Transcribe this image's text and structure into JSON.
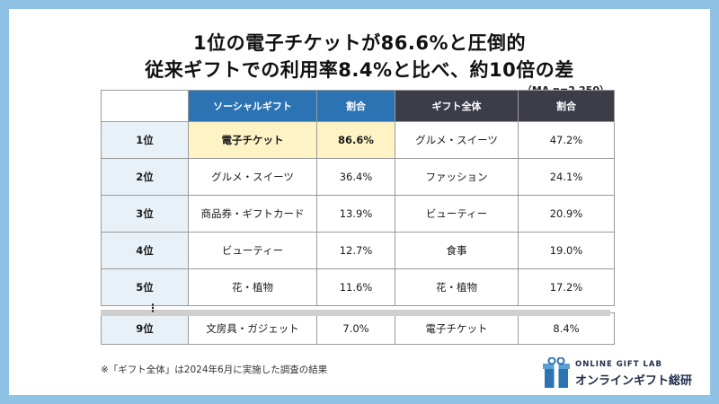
{
  "headline": {
    "line1": "1位の電子チケットが86.6%と圧倒的",
    "line2": "従来ギフトでの利用率8.4%と比べ、約10倍の差"
  },
  "sample_note": "（MA n=2,250）",
  "table": {
    "headers": [
      "",
      "ソーシャルギフト",
      "割合",
      "ギフト全体",
      "割合"
    ],
    "rows": [
      {
        "rank": "1位",
        "social": "電子チケット",
        "social_pct": "86.6%",
        "gift": "グルメ・スイーツ",
        "gift_pct": "47.2%"
      },
      {
        "rank": "2位",
        "social": "グルメ・スイーツ",
        "social_pct": "36.4%",
        "gift": "ファッション",
        "gift_pct": "24.1%"
      },
      {
        "rank": "3位",
        "social": "商品券・ギフトカード",
        "social_pct": "13.9%",
        "gift": "ビューティー",
        "gift_pct": "20.9%"
      },
      {
        "rank": "4位",
        "social": "ビューティー",
        "social_pct": "12.7%",
        "gift": "食事",
        "gift_pct": "19.0%"
      },
      {
        "rank": "5位",
        "social": "花・植物",
        "social_pct": "11.6%",
        "gift": "花・植物",
        "gift_pct": "17.2%"
      },
      {
        "rank": "9位",
        "social": "文房具・ガジェット",
        "social_pct": "7.0%",
        "gift": "電子チケット",
        "gift_pct": "8.4%"
      }
    ],
    "ellipsis": "⋮"
  },
  "footnote": "※「ギフト全体」は2024年6月に実施した調査の結果",
  "logo": {
    "small": "ONLINE GIFT LAB",
    "big": "オンラインギフト総研",
    "icon": "gift-box-icon",
    "color": "#2b73b3"
  },
  "colors": {
    "frame": "#8ec3e6",
    "header_blue": "#2b73b3",
    "header_dark": "#3d3d4a",
    "highlight": "#fdf3c5",
    "rank_bg": "#e9f1f8"
  }
}
